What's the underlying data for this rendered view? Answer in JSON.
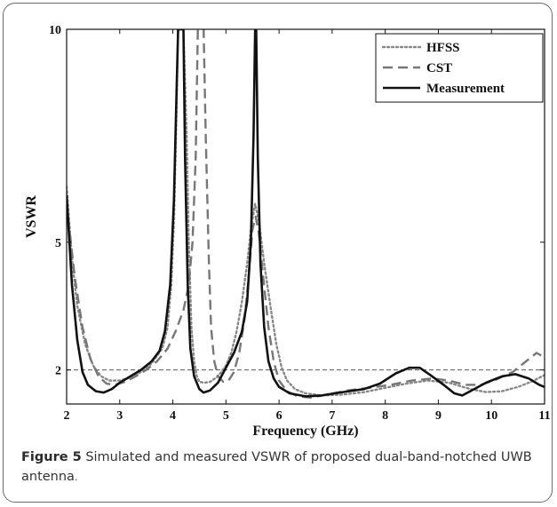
{
  "chart_data": {
    "type": "line",
    "xlabel": "Frequency (GHz)",
    "ylabel": "VSWR",
    "xlim": [
      2,
      11
    ],
    "ylim": [
      1.2,
      10
    ],
    "x_ticks": [
      "2",
      "3",
      "4",
      "5",
      "6",
      "7",
      "8",
      "9",
      "10",
      "11"
    ],
    "y_ticks": [
      {
        "value": 2,
        "label": "2"
      },
      {
        "value": 5,
        "label": "5"
      },
      {
        "value": 10,
        "label": "10"
      }
    ],
    "reference_line": {
      "y": 2,
      "style": "dashed"
    },
    "legend": {
      "position": "top-right"
    },
    "series": [
      {
        "name": "HFSS",
        "style": "dotted",
        "color": "#888888",
        "points": [
          [
            2.0,
            6.3
          ],
          [
            2.1,
            4.6
          ],
          [
            2.2,
            3.5
          ],
          [
            2.35,
            2.6
          ],
          [
            2.5,
            2.1
          ],
          [
            2.65,
            1.85
          ],
          [
            2.8,
            1.75
          ],
          [
            3.0,
            1.75
          ],
          [
            3.2,
            1.82
          ],
          [
            3.4,
            1.95
          ],
          [
            3.6,
            2.15
          ],
          [
            3.8,
            2.5
          ],
          [
            3.9,
            3.0
          ],
          [
            3.97,
            4.0
          ],
          [
            4.02,
            5.5
          ],
          [
            4.06,
            7.5
          ],
          [
            4.1,
            10.0
          ],
          [
            4.2,
            10.0
          ],
          [
            4.26,
            7.5
          ],
          [
            4.3,
            5.0
          ],
          [
            4.35,
            3.0
          ],
          [
            4.4,
            2.2
          ],
          [
            4.45,
            1.85
          ],
          [
            4.5,
            1.72
          ],
          [
            4.6,
            1.7
          ],
          [
            4.7,
            1.72
          ],
          [
            4.85,
            1.85
          ],
          [
            5.0,
            2.1
          ],
          [
            5.1,
            2.4
          ],
          [
            5.2,
            2.9
          ],
          [
            5.3,
            3.6
          ],
          [
            5.4,
            4.5
          ],
          [
            5.48,
            5.4
          ],
          [
            5.55,
            5.9
          ],
          [
            5.62,
            5.5
          ],
          [
            5.72,
            4.5
          ],
          [
            5.85,
            3.4
          ],
          [
            5.95,
            2.6
          ],
          [
            6.05,
            2.05
          ],
          [
            6.15,
            1.75
          ],
          [
            6.3,
            1.55
          ],
          [
            6.5,
            1.45
          ],
          [
            6.8,
            1.4
          ],
          [
            7.2,
            1.42
          ],
          [
            7.6,
            1.48
          ],
          [
            8.0,
            1.58
          ],
          [
            8.4,
            1.68
          ],
          [
            8.8,
            1.75
          ],
          [
            9.2,
            1.7
          ],
          [
            9.6,
            1.55
          ],
          [
            9.9,
            1.48
          ],
          [
            10.2,
            1.5
          ],
          [
            10.5,
            1.6
          ],
          [
            10.8,
            1.75
          ],
          [
            11.0,
            1.88
          ]
        ]
      },
      {
        "name": "CST",
        "style": "dashed",
        "color": "#777777",
        "points": [
          [
            2.0,
            5.9
          ],
          [
            2.15,
            4.2
          ],
          [
            2.3,
            3.0
          ],
          [
            2.45,
            2.25
          ],
          [
            2.6,
            1.85
          ],
          [
            2.75,
            1.68
          ],
          [
            2.9,
            1.65
          ],
          [
            3.1,
            1.72
          ],
          [
            3.3,
            1.85
          ],
          [
            3.5,
            2.0
          ],
          [
            3.7,
            2.2
          ],
          [
            3.9,
            2.5
          ],
          [
            4.05,
            2.9
          ],
          [
            4.2,
            3.4
          ],
          [
            4.3,
            4.0
          ],
          [
            4.37,
            5.0
          ],
          [
            4.43,
            7.0
          ],
          [
            4.47,
            10.0
          ],
          [
            4.58,
            10.0
          ],
          [
            4.62,
            7.5
          ],
          [
            4.68,
            4.5
          ],
          [
            4.72,
            3.0
          ],
          [
            4.78,
            2.2
          ],
          [
            4.85,
            1.85
          ],
          [
            4.95,
            1.72
          ],
          [
            5.05,
            1.75
          ],
          [
            5.15,
            1.95
          ],
          [
            5.25,
            2.4
          ],
          [
            5.35,
            3.2
          ],
          [
            5.43,
            4.2
          ],
          [
            5.5,
            5.3
          ],
          [
            5.56,
            5.6
          ],
          [
            5.62,
            5.2
          ],
          [
            5.7,
            4.2
          ],
          [
            5.8,
            3.0
          ],
          [
            5.9,
            2.2
          ],
          [
            6.0,
            1.75
          ],
          [
            6.15,
            1.5
          ],
          [
            6.35,
            1.38
          ],
          [
            6.6,
            1.35
          ],
          [
            6.9,
            1.42
          ],
          [
            7.3,
            1.52
          ],
          [
            7.7,
            1.58
          ],
          [
            8.1,
            1.65
          ],
          [
            8.5,
            1.75
          ],
          [
            8.9,
            1.8
          ],
          [
            9.2,
            1.75
          ],
          [
            9.5,
            1.65
          ],
          [
            9.8,
            1.65
          ],
          [
            10.1,
            1.78
          ],
          [
            10.4,
            1.95
          ],
          [
            10.7,
            2.25
          ],
          [
            10.85,
            2.4
          ],
          [
            11.0,
            2.3
          ]
        ]
      },
      {
        "name": "Measurement",
        "style": "solid",
        "color": "#111111",
        "points": [
          [
            2.0,
            6.1
          ],
          [
            2.1,
            4.0
          ],
          [
            2.2,
            2.7
          ],
          [
            2.3,
            1.95
          ],
          [
            2.4,
            1.65
          ],
          [
            2.55,
            1.5
          ],
          [
            2.7,
            1.47
          ],
          [
            2.85,
            1.55
          ],
          [
            3.0,
            1.7
          ],
          [
            3.2,
            1.85
          ],
          [
            3.4,
            2.0
          ],
          [
            3.6,
            2.2
          ],
          [
            3.75,
            2.45
          ],
          [
            3.85,
            2.9
          ],
          [
            3.95,
            4.0
          ],
          [
            4.02,
            6.0
          ],
          [
            4.07,
            8.5
          ],
          [
            4.1,
            10.0
          ],
          [
            4.2,
            10.0
          ],
          [
            4.23,
            7.0
          ],
          [
            4.28,
            4.0
          ],
          [
            4.33,
            2.5
          ],
          [
            4.4,
            1.85
          ],
          [
            4.5,
            1.55
          ],
          [
            4.58,
            1.47
          ],
          [
            4.7,
            1.52
          ],
          [
            4.85,
            1.7
          ],
          [
            5.0,
            2.05
          ],
          [
            5.15,
            2.4
          ],
          [
            5.3,
            2.9
          ],
          [
            5.4,
            3.6
          ],
          [
            5.47,
            5.0
          ],
          [
            5.52,
            7.5
          ],
          [
            5.55,
            10.0
          ],
          [
            5.57,
            10.0
          ],
          [
            5.6,
            7.0
          ],
          [
            5.65,
            4.5
          ],
          [
            5.72,
            3.0
          ],
          [
            5.8,
            2.2
          ],
          [
            5.9,
            1.8
          ],
          [
            6.0,
            1.6
          ],
          [
            6.2,
            1.45
          ],
          [
            6.5,
            1.38
          ],
          [
            6.8,
            1.4
          ],
          [
            7.2,
            1.48
          ],
          [
            7.6,
            1.55
          ],
          [
            7.9,
            1.68
          ],
          [
            8.2,
            1.92
          ],
          [
            8.45,
            2.05
          ],
          [
            8.65,
            2.05
          ],
          [
            8.85,
            1.88
          ],
          [
            9.1,
            1.65
          ],
          [
            9.3,
            1.45
          ],
          [
            9.45,
            1.4
          ],
          [
            9.6,
            1.5
          ],
          [
            9.9,
            1.7
          ],
          [
            10.2,
            1.85
          ],
          [
            10.45,
            1.9
          ],
          [
            10.7,
            1.8
          ],
          [
            10.9,
            1.65
          ],
          [
            11.0,
            1.6
          ]
        ]
      }
    ]
  },
  "caption": {
    "label": "Figure 5",
    "text": "Simulated and measured VSWR of proposed dual-band-notched UWB antenna",
    "tail": "."
  }
}
